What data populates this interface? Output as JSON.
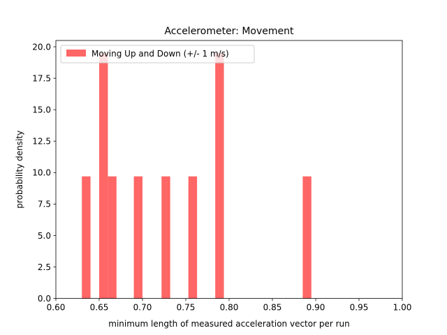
{
  "chart_data": {
    "type": "bar",
    "title": "Accelerometer: Movement",
    "xlabel": "minimum length of measured acceleration vector per run",
    "ylabel": "probability density",
    "xlim": [
      0.6,
      1.0
    ],
    "ylim": [
      0.0,
      20.5
    ],
    "xticks": [
      "0.60",
      "0.65",
      "0.70",
      "0.75",
      "0.80",
      "0.85",
      "0.90",
      "0.95",
      "1.00"
    ],
    "yticks": [
      "0.0",
      "2.5",
      "5.0",
      "7.5",
      "10.0",
      "12.5",
      "15.0",
      "17.5",
      "20.0"
    ],
    "grid": false,
    "legend_position": "top-left",
    "series": [
      {
        "name": "Moving Up and Down (+/- 1 m/s)",
        "color": "#ff6666",
        "bins": [
          {
            "x0": 0.63,
            "x1": 0.64,
            "value": 9.7
          },
          {
            "x0": 0.65,
            "x1": 0.66,
            "value": 19.5
          },
          {
            "x0": 0.66,
            "x1": 0.67,
            "value": 9.7
          },
          {
            "x0": 0.69,
            "x1": 0.7,
            "value": 9.7
          },
          {
            "x0": 0.722,
            "x1": 0.732,
            "value": 9.7
          },
          {
            "x0": 0.753,
            "x1": 0.763,
            "value": 9.7
          },
          {
            "x0": 0.784,
            "x1": 0.794,
            "value": 19.5
          },
          {
            "x0": 0.885,
            "x1": 0.895,
            "value": 9.7
          }
        ]
      }
    ]
  }
}
